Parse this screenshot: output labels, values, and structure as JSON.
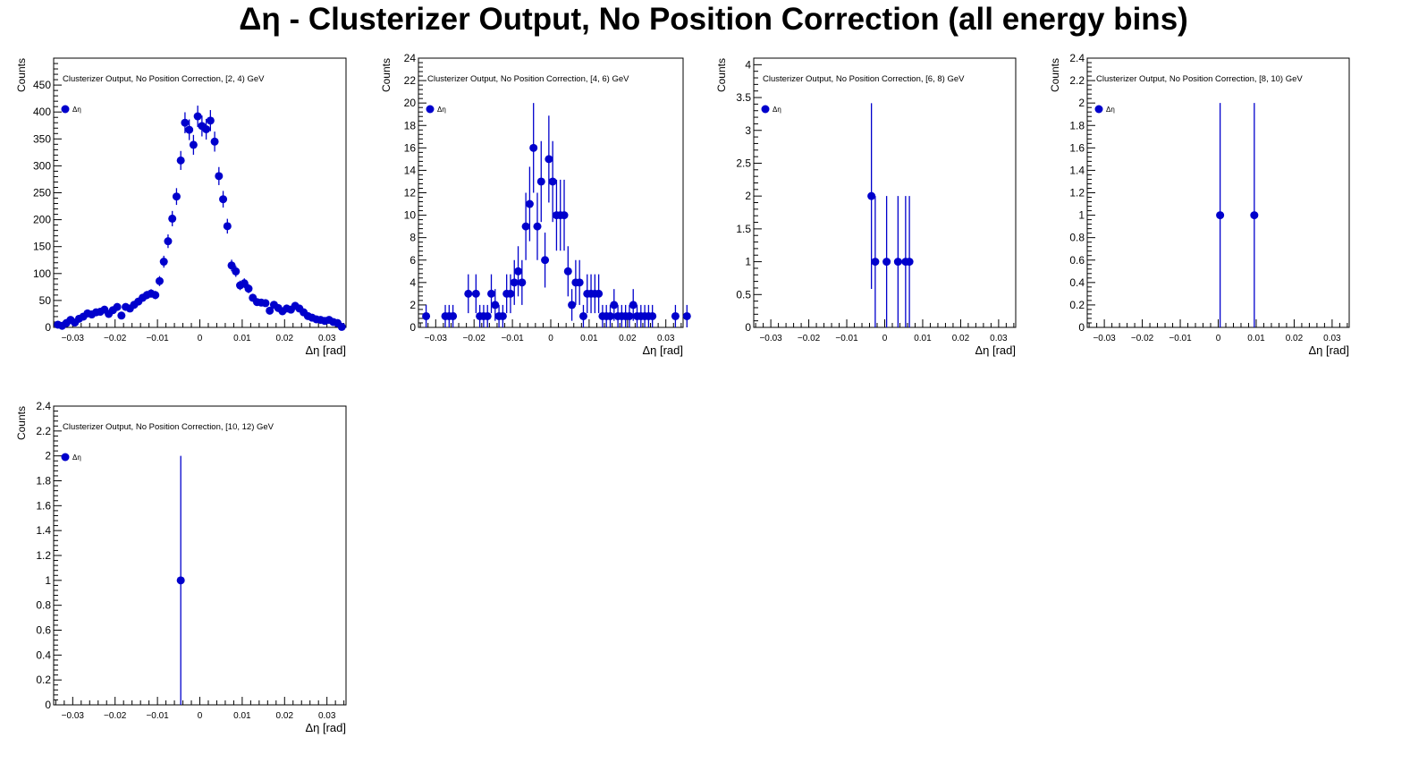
{
  "page": {
    "title": "Δη  -  Clusterizer Output, No Position Correction  (all energy bins)"
  },
  "chart_data": [
    {
      "type": "scatter",
      "title": "Clusterizer Output, No Position Correction, [2, 4) GeV",
      "xlabel": "Δη  [rad]",
      "ylabel": "Counts",
      "legend": "Δη",
      "legend_position": "top-left",
      "xlim": [
        -0.0345,
        0.0345
      ],
      "ylim": [
        0,
        500
      ],
      "xticks": [
        -0.03,
        -0.02,
        -0.01,
        0,
        0.01,
        0.02,
        0.03
      ],
      "yticks": [
        0,
        50,
        100,
        150,
        200,
        250,
        300,
        350,
        400,
        450
      ],
      "ytick_labels": [
        "0",
        "50",
        "100",
        "150",
        "200",
        "250",
        "300",
        "350",
        "400",
        "450"
      ],
      "x": [
        -0.0335,
        -0.0325,
        -0.0315,
        -0.0305,
        -0.0295,
        -0.0285,
        -0.0275,
        -0.0265,
        -0.0255,
        -0.0245,
        -0.0235,
        -0.0225,
        -0.0215,
        -0.0205,
        -0.0195,
        -0.0185,
        -0.0175,
        -0.0165,
        -0.0155,
        -0.0145,
        -0.0135,
        -0.0125,
        -0.0115,
        -0.0105,
        -0.0095,
        -0.0085,
        -0.0075,
        -0.0065,
        -0.0055,
        -0.0045,
        -0.0035,
        -0.0025,
        -0.0015,
        -0.0005,
        0.0005,
        0.0015,
        0.0025,
        0.0035,
        0.0045,
        0.0055,
        0.0065,
        0.0075,
        0.0085,
        0.0095,
        0.0105,
        0.0115,
        0.0125,
        0.0135,
        0.0145,
        0.0155,
        0.0165,
        0.0175,
        0.0185,
        0.0195,
        0.0205,
        0.0215,
        0.0225,
        0.0235,
        0.0245,
        0.0255,
        0.0265,
        0.0275,
        0.0285,
        0.0295,
        0.0305,
        0.0315,
        0.0325,
        0.0335
      ],
      "y": [
        5,
        3,
        8,
        14,
        9,
        16,
        20,
        26,
        24,
        28,
        29,
        33,
        25,
        32,
        38,
        22,
        38,
        35,
        42,
        48,
        55,
        60,
        63,
        60,
        86,
        122,
        160,
        202,
        243,
        310,
        380,
        367,
        339,
        392,
        374,
        368,
        384,
        345,
        281,
        238,
        188,
        115,
        104,
        78,
        82,
        72,
        55,
        47,
        46,
        45,
        31,
        42,
        36,
        30,
        35,
        33,
        40,
        35,
        28,
        21,
        18,
        15,
        14,
        12,
        14,
        10,
        8,
        1
      ]
    },
    {
      "type": "scatter",
      "title": "Clusterizer Output, No Position Correction, [4, 6) GeV",
      "xlabel": "Δη  [rad]",
      "ylabel": "Counts",
      "legend": "Δη",
      "legend_position": "top-left",
      "xlim": [
        -0.0345,
        0.0345
      ],
      "ylim": [
        0,
        24
      ],
      "xticks": [
        -0.03,
        -0.02,
        -0.01,
        0,
        0.01,
        0.02,
        0.03
      ],
      "yticks": [
        0,
        2,
        4,
        6,
        8,
        10,
        12,
        14,
        16,
        18,
        20,
        22,
        24
      ],
      "ytick_labels": [
        "0",
        "2",
        "4",
        "6",
        "8",
        "10",
        "12",
        "14",
        "16",
        "18",
        "20",
        "22",
        "24"
      ],
      "x": [
        -0.0325,
        -0.0275,
        -0.0265,
        -0.0255,
        -0.0215,
        -0.0195,
        -0.0185,
        -0.0175,
        -0.0165,
        -0.0155,
        -0.0145,
        -0.0135,
        -0.0125,
        -0.0115,
        -0.0105,
        -0.0095,
        -0.0085,
        -0.0075,
        -0.0065,
        -0.0055,
        -0.0045,
        -0.0035,
        -0.0025,
        -0.0015,
        -0.0005,
        0.0005,
        0.0015,
        0.0025,
        0.0035,
        0.0045,
        0.0055,
        0.0065,
        0.0075,
        0.0085,
        0.0095,
        0.0105,
        0.0115,
        0.0125,
        0.0135,
        0.0145,
        0.0155,
        0.0165,
        0.0175,
        0.0185,
        0.0195,
        0.0205,
        0.0215,
        0.0225,
        0.0235,
        0.0245,
        0.0255,
        0.0265,
        0.0325,
        0.0355
      ],
      "y": [
        1,
        1,
        1,
        1,
        3,
        3,
        1,
        1,
        1,
        3,
        2,
        1,
        1,
        3,
        3,
        4,
        5,
        4,
        9,
        11,
        16,
        9,
        13,
        6,
        15,
        13,
        10,
        10,
        10,
        5,
        2,
        4,
        4,
        1,
        3,
        3,
        3,
        3,
        1,
        1,
        1,
        2,
        1,
        1,
        1,
        1,
        2,
        1,
        1,
        1,
        1,
        1,
        1,
        1
      ]
    },
    {
      "type": "scatter",
      "title": "Clusterizer Output, No Position Correction, [6, 8) GeV",
      "xlabel": "Δη  [rad]",
      "ylabel": "Counts",
      "legend": "Δη",
      "legend_position": "top-left",
      "xlim": [
        -0.0345,
        0.0345
      ],
      "ylim": [
        0,
        4.1
      ],
      "xticks": [
        -0.03,
        -0.02,
        -0.01,
        0,
        0.01,
        0.02,
        0.03
      ],
      "yticks": [
        0,
        0.5,
        1,
        1.5,
        2,
        2.5,
        3,
        3.5,
        4
      ],
      "ytick_labels": [
        "0",
        "0.5",
        "1",
        "1.5",
        "2",
        "2.5",
        "3",
        "3.5",
        "4"
      ],
      "x": [
        -0.0035,
        -0.0025,
        0.0005,
        0.0035,
        0.0055,
        0.0065
      ],
      "y": [
        2,
        1,
        1,
        1,
        1,
        1
      ]
    },
    {
      "type": "scatter",
      "title": "Clusterizer Output, No Position Correction, [8, 10) GeV",
      "xlabel": "Δη  [rad]",
      "ylabel": "Counts",
      "legend": "Δη",
      "legend_position": "top-left",
      "xlim": [
        -0.0345,
        0.0345
      ],
      "ylim": [
        0,
        2.4
      ],
      "xticks": [
        -0.03,
        -0.02,
        -0.01,
        0,
        0.01,
        0.02,
        0.03
      ],
      "yticks": [
        0,
        0.2,
        0.4,
        0.6,
        0.8,
        1,
        1.2,
        1.4,
        1.6,
        1.8,
        2,
        2.2,
        2.4
      ],
      "ytick_labels": [
        "0",
        "0.2",
        "0.4",
        "0.6",
        "0.8",
        "1",
        "1.2",
        "1.4",
        "1.6",
        "1.8",
        "2",
        "2.2",
        "2.4"
      ],
      "x": [
        0.0005,
        0.0095
      ],
      "y": [
        1,
        1
      ]
    },
    {
      "type": "scatter",
      "title": "Clusterizer Output, No Position Correction, [10, 12) GeV",
      "xlabel": "Δη  [rad]",
      "ylabel": "Counts",
      "legend": "Δη",
      "legend_position": "top-left",
      "xlim": [
        -0.0345,
        0.0345
      ],
      "ylim": [
        0,
        2.4
      ],
      "xticks": [
        -0.03,
        -0.02,
        -0.01,
        0,
        0.01,
        0.02,
        0.03
      ],
      "yticks": [
        0,
        0.2,
        0.4,
        0.6,
        0.8,
        1,
        1.2,
        1.4,
        1.6,
        1.8,
        2,
        2.2,
        2.4
      ],
      "ytick_labels": [
        "0",
        "0.2",
        "0.4",
        "0.6",
        "0.8",
        "1",
        "1.2",
        "1.4",
        "1.6",
        "1.8",
        "2",
        "2.2",
        "2.4"
      ],
      "x": [
        -0.0045
      ],
      "y": [
        1
      ]
    }
  ],
  "colors": {
    "marker": "#0000cc",
    "frame": "#000000",
    "background": "#ffffff"
  }
}
